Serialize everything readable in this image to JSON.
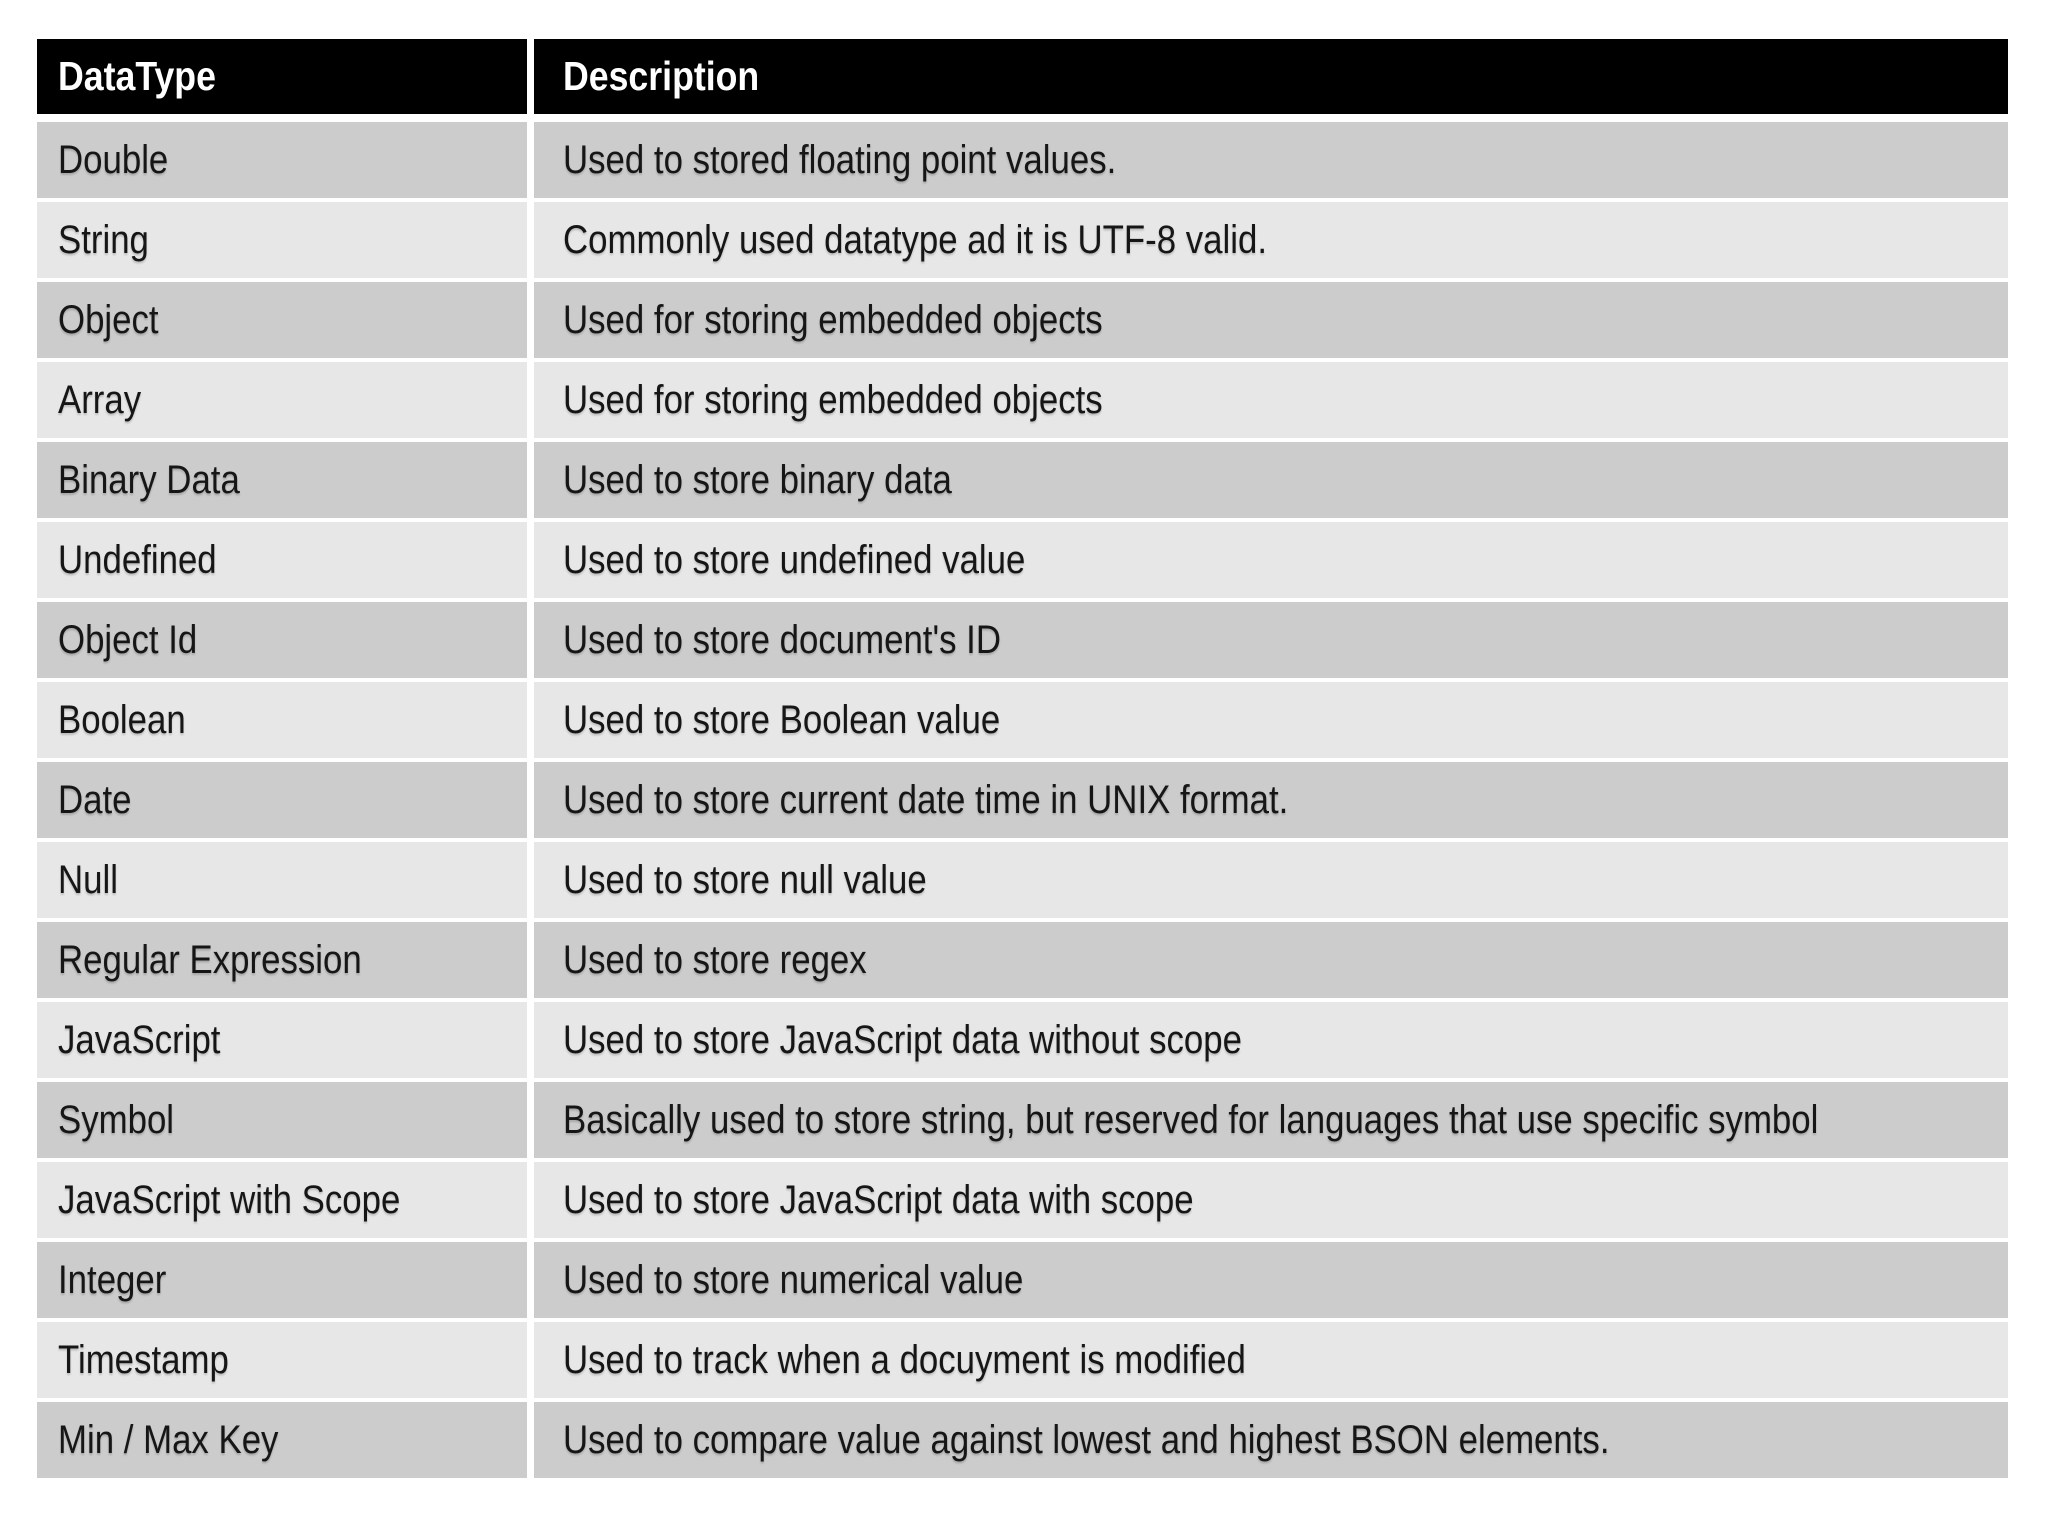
{
  "table": {
    "columns": [
      "DataType",
      "Description"
    ],
    "rows": [
      {
        "type": "Double",
        "description": "Used to stored floating point values."
      },
      {
        "type": "String",
        "description": "Commonly used datatype ad it is UTF-8 valid."
      },
      {
        "type": "Object",
        "description": "Used for storing embedded objects"
      },
      {
        "type": "Array",
        "description": "Used for storing embedded objects"
      },
      {
        "type": "Binary Data",
        "description": "Used to store binary data"
      },
      {
        "type": "Undefined",
        "description": "Used to store undefined value"
      },
      {
        "type": "Object Id",
        "description": "Used to store document's ID"
      },
      {
        "type": "Boolean",
        "description": "Used to store Boolean value"
      },
      {
        "type": "Date",
        "description": "Used to store current date time in UNIX format."
      },
      {
        "type": "Null",
        "description": "Used to store null value"
      },
      {
        "type": "Regular Expression",
        "description": "Used to store regex"
      },
      {
        "type": "JavaScript",
        "description": "Used to store JavaScript data without scope"
      },
      {
        "type": "Symbol",
        "description": "Basically used to store string, but reserved for languages that use specific symbol"
      },
      {
        "type": "JavaScript with Scope",
        "description": "Used to store JavaScript data with scope"
      },
      {
        "type": "Integer",
        "description": "Used to store numerical value"
      },
      {
        "type": "Timestamp",
        "description": "Used to track when a docuyment is modified"
      },
      {
        "type": "Min / Max Key",
        "description": "Used to compare value against lowest and highest BSON elements."
      }
    ],
    "colors": {
      "header_bg": "#000000",
      "header_text": "#ffffff",
      "row_dark": "#cccccc",
      "row_light": "#e7e7e7",
      "separator": "#ffffff",
      "body_text": "#161616",
      "page_bg": "#ffffff"
    }
  }
}
